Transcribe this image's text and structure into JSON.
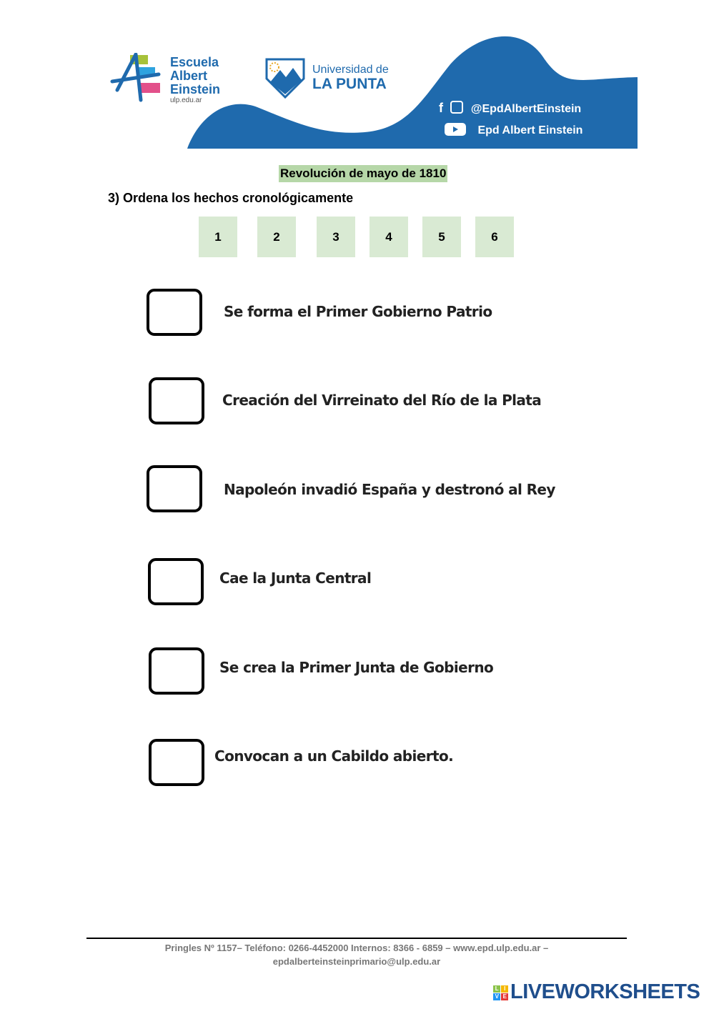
{
  "header": {
    "school_name": "Escuela Albert Einstein",
    "school_line1": "Escuela",
    "school_line2": "Albert",
    "school_line3": "Einstein",
    "school_site": "ulp.edu.ar",
    "university_line1": "Universidad de",
    "university_line2": "LA PUNTA",
    "social_handle": "@EpdAlbertEinstein",
    "youtube_channel": "Epd Albert Einstein",
    "brand_color": "#1f6aad"
  },
  "title": "Revolución de mayo de 1810",
  "question": "3)  Ordena los hechos cronológicamente",
  "numbers": [
    "1",
    "2",
    "3",
    "4",
    "5",
    "6"
  ],
  "items": [
    "Se forma el Primer Gobierno Patrio",
    "Creación del Virreinato del Río de la Plata",
    "Napoleón invadió España y destronó al Rey",
    "Cae la Junta Central",
    "Se crea la Primer Junta de Gobierno",
    "Convocan a un Cabildo abierto."
  ],
  "footer": {
    "line1": "Pringles Nº 1157– Teléfono: 0266-4452000 Internos: 8366 - 6859 – www.epd.ulp.edu.ar –",
    "line2": "epdalberteinsteinprimario@ulp.edu.ar"
  },
  "watermark": "LIVEWORKSHEETS"
}
